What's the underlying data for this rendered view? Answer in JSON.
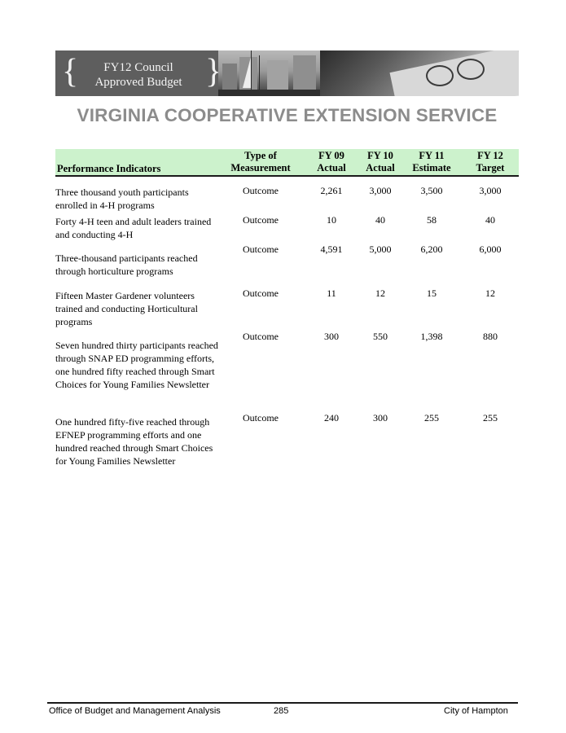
{
  "banner": {
    "title_line1": "FY12 Council",
    "title_line2": "Approved Budget"
  },
  "page_title": "VIRGINIA COOPERATIVE EXTENSION SERVICE",
  "table": {
    "headers": {
      "indicator": "Performance Indicators",
      "type_line1": "Type of",
      "type_line2": "Measurement",
      "fy09_line1": "FY 09",
      "fy09_line2": "Actual",
      "fy10_line1": "FY 10",
      "fy10_line2": "Actual",
      "fy11_line1": "FY 11",
      "fy11_line2": "Estimate",
      "fy12_line1": "FY 12",
      "fy12_line2": "Target"
    },
    "rows": [
      {
        "indicator": "Three thousand youth participants enrolled in 4-H programs",
        "type": "Outcome",
        "fy09": "2,261",
        "fy10": "3,000",
        "fy11": "3,500",
        "fy12": "3,000"
      },
      {
        "indicator": "Forty 4-H teen and adult leaders trained and conducting 4-H",
        "type": "Outcome",
        "fy09": "10",
        "fy10": "40",
        "fy11": "58",
        "fy12": "40"
      },
      {
        "indicator": "Three-thousand participants reached through horticulture programs",
        "type": "Outcome",
        "fy09": "4,591",
        "fy10": "5,000",
        "fy11": "6,200",
        "fy12": "6,000"
      },
      {
        "indicator": "Fifteen Master Gardener volunteers trained and conducting Horticultural programs",
        "type": "Outcome",
        "fy09": "11",
        "fy10": "12",
        "fy11": "15",
        "fy12": "12"
      },
      {
        "indicator": "Seven hundred thirty participants reached through SNAP ED programming efforts, one hundred fifty reached through Smart Choices for Young Families Newsletter",
        "type": "Outcome",
        "fy09": "300",
        "fy10": "550",
        "fy11": "1,398",
        "fy12": "880"
      },
      {
        "indicator": "One hundred fifty-five reached through EFNEP programming efforts and one hundred reached through Smart Choices for Young Families Newsletter",
        "type": "Outcome",
        "fy09": "240",
        "fy10": "300",
        "fy11": "255",
        "fy12": "255"
      }
    ]
  },
  "footer": {
    "left": "Office of Budget and Management Analysis",
    "page_number": "285",
    "right": "City of Hampton"
  }
}
